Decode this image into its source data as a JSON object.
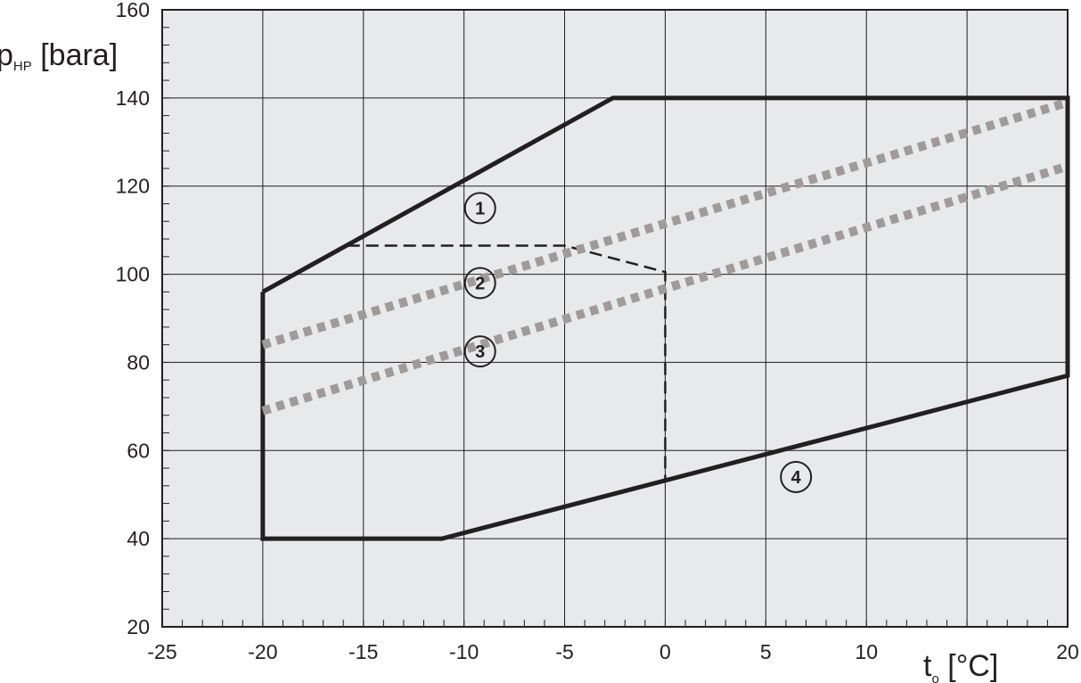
{
  "chart_data": {
    "type": "line",
    "ylabel": {
      "main": "p",
      "sub": "HP",
      "unit": " [bara]"
    },
    "xlabel": {
      "main": "t",
      "sub": "o",
      "unit": " [°C]"
    },
    "xlim": [
      -25,
      20
    ],
    "ylim": [
      20,
      160
    ],
    "x_ticks": [
      -25,
      -20,
      -15,
      -10,
      -5,
      0,
      5,
      10,
      15,
      20
    ],
    "x_tick_labels": [
      "-25",
      "-20",
      "-15",
      "-10",
      "-5",
      "0",
      "5",
      "10",
      "",
      "20"
    ],
    "y_ticks": [
      20,
      40,
      60,
      80,
      100,
      120,
      140,
      160
    ],
    "y_tick_labels": [
      "20",
      "40",
      "60",
      "80",
      "100",
      "120",
      "140",
      "160"
    ],
    "grid": true,
    "series": [
      {
        "style": "solid",
        "color": "#231f20",
        "x": [
          -20,
          -20,
          -11.1,
          20,
          20,
          -2.6,
          -20
        ],
        "y": [
          96,
          40,
          40,
          77,
          140,
          140,
          96
        ]
      },
      {
        "style": "dashed",
        "color": "#231f20",
        "x": [
          -15.8,
          -5,
          0,
          0
        ],
        "y": [
          106.5,
          106.5,
          100.5,
          53
        ]
      },
      {
        "style": "dotted",
        "color": "#a09a99",
        "x": [
          -20,
          20
        ],
        "y": [
          84,
          139
        ]
      },
      {
        "style": "dotted",
        "color": "#a09a99",
        "x": [
          -20,
          20
        ],
        "y": [
          69,
          124.5
        ]
      }
    ],
    "annotations": [
      {
        "text": "1",
        "x": -9.2,
        "y": 115
      },
      {
        "text": "2",
        "x": -9.2,
        "y": 98
      },
      {
        "text": "3",
        "x": -9.2,
        "y": 82.5
      },
      {
        "text": "4",
        "x": 6.5,
        "y": 54
      }
    ]
  }
}
